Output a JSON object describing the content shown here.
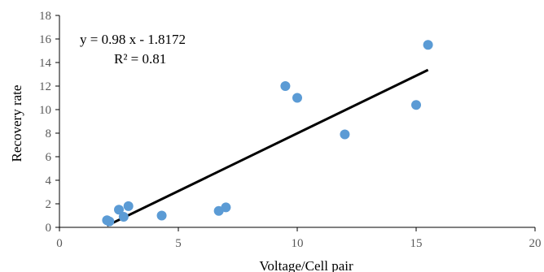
{
  "chart_data": {
    "type": "scatter",
    "xlabel": "Voltage/Cell pair",
    "ylabel": "Recovery rate",
    "xlim": [
      0,
      20
    ],
    "ylim": [
      0,
      18
    ],
    "x_ticks": [
      0,
      5,
      10,
      15,
      20
    ],
    "y_ticks": [
      0,
      2,
      4,
      6,
      8,
      10,
      12,
      14,
      16,
      18
    ],
    "grid": false,
    "legend": "none",
    "series": [
      {
        "color": "#5B9BD5",
        "points": [
          {
            "x": 2.0,
            "y": 0.6
          },
          {
            "x": 2.1,
            "y": 0.5
          },
          {
            "x": 2.5,
            "y": 1.5
          },
          {
            "x": 2.7,
            "y": 0.9
          },
          {
            "x": 2.9,
            "y": 1.8
          },
          {
            "x": 4.3,
            "y": 1.0
          },
          {
            "x": 6.7,
            "y": 1.4
          },
          {
            "x": 7.0,
            "y": 1.7
          },
          {
            "x": 9.5,
            "y": 12.0
          },
          {
            "x": 10.0,
            "y": 11.0
          },
          {
            "x": 12.0,
            "y": 7.9
          },
          {
            "x": 15.0,
            "y": 10.4
          },
          {
            "x": 15.5,
            "y": 15.5
          }
        ]
      }
    ],
    "trendline": {
      "slope": 0.98,
      "intercept": -1.8172,
      "x_range": [
        2.0,
        15.5
      ],
      "color": "#000000",
      "equation_label": "y = 0.98 x - 1.8172",
      "r2_label": "R² = 0.81"
    }
  }
}
